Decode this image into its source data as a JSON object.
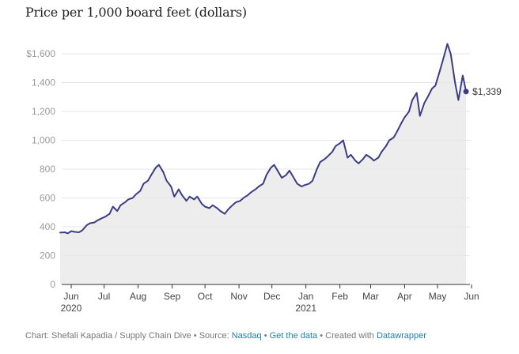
{
  "chart_data": {
    "type": "area",
    "title": "Price per 1,000 board feet (dollars)",
    "xlabel": "",
    "ylabel": "",
    "ylim": [
      0,
      1700
    ],
    "yticks": [
      0,
      200,
      400,
      600,
      800,
      1000,
      1200,
      1400,
      1600
    ],
    "ytick_labels": [
      "0",
      "200",
      "400",
      "600",
      "800",
      "1,000",
      "1,200",
      "1,400",
      "$1,600"
    ],
    "xticks": [
      {
        "date": "2020-06-01",
        "label": "Jun",
        "sublabel": "2020"
      },
      {
        "date": "2020-07-01",
        "label": "Jul",
        "sublabel": ""
      },
      {
        "date": "2020-08-01",
        "label": "Aug",
        "sublabel": ""
      },
      {
        "date": "2020-09-01",
        "label": "Sep",
        "sublabel": ""
      },
      {
        "date": "2020-10-01",
        "label": "Oct",
        "sublabel": ""
      },
      {
        "date": "2020-11-01",
        "label": "Nov",
        "sublabel": ""
      },
      {
        "date": "2020-12-01",
        "label": "Dec",
        "sublabel": ""
      },
      {
        "date": "2021-01-01",
        "label": "Jan",
        "sublabel": "2021"
      },
      {
        "date": "2021-02-01",
        "label": "Feb",
        "sublabel": ""
      },
      {
        "date": "2021-03-01",
        "label": "Mar",
        "sublabel": ""
      },
      {
        "date": "2021-04-01",
        "label": "Apr",
        "sublabel": ""
      },
      {
        "date": "2021-05-01",
        "label": "May",
        "sublabel": ""
      },
      {
        "date": "2021-06-01",
        "label": "Jun",
        "sublabel": ""
      }
    ],
    "grid": true,
    "series": [
      {
        "line_color": "#3c3c84",
        "fill_color": "#ededed",
        "x": [
          "2020-05-22",
          "2020-05-26",
          "2020-05-29",
          "2020-06-01",
          "2020-06-04",
          "2020-06-08",
          "2020-06-11",
          "2020-06-15",
          "2020-06-18",
          "2020-06-22",
          "2020-06-25",
          "2020-06-29",
          "2020-07-02",
          "2020-07-06",
          "2020-07-09",
          "2020-07-13",
          "2020-07-16",
          "2020-07-20",
          "2020-07-23",
          "2020-07-27",
          "2020-07-30",
          "2020-08-03",
          "2020-08-06",
          "2020-08-10",
          "2020-08-13",
          "2020-08-17",
          "2020-08-20",
          "2020-08-24",
          "2020-08-27",
          "2020-08-31",
          "2020-09-03",
          "2020-09-07",
          "2020-09-10",
          "2020-09-14",
          "2020-09-17",
          "2020-09-21",
          "2020-09-24",
          "2020-09-28",
          "2020-10-01",
          "2020-10-05",
          "2020-10-08",
          "2020-10-12",
          "2020-10-15",
          "2020-10-19",
          "2020-10-22",
          "2020-10-26",
          "2020-10-29",
          "2020-11-02",
          "2020-11-05",
          "2020-11-09",
          "2020-11-12",
          "2020-11-16",
          "2020-11-19",
          "2020-11-23",
          "2020-11-26",
          "2020-11-30",
          "2020-12-03",
          "2020-12-07",
          "2020-12-10",
          "2020-12-14",
          "2020-12-17",
          "2020-12-21",
          "2020-12-24",
          "2020-12-28",
          "2020-12-31",
          "2021-01-04",
          "2021-01-07",
          "2021-01-11",
          "2021-01-14",
          "2021-01-18",
          "2021-01-21",
          "2021-01-25",
          "2021-01-28",
          "2021-02-01",
          "2021-02-04",
          "2021-02-08",
          "2021-02-11",
          "2021-02-15",
          "2021-02-18",
          "2021-02-22",
          "2021-02-25",
          "2021-03-01",
          "2021-03-04",
          "2021-03-08",
          "2021-03-11",
          "2021-03-15",
          "2021-03-18",
          "2021-03-22",
          "2021-03-25",
          "2021-03-29",
          "2021-04-01",
          "2021-04-05",
          "2021-04-08",
          "2021-04-12",
          "2021-04-15",
          "2021-04-19",
          "2021-04-22",
          "2021-04-26",
          "2021-04-29",
          "2021-05-03",
          "2021-05-06",
          "2021-05-10",
          "2021-05-13",
          "2021-05-17",
          "2021-05-20",
          "2021-05-24",
          "2021-05-27"
        ],
        "values": [
          360,
          362,
          355,
          370,
          365,
          362,
          375,
          410,
          425,
          430,
          445,
          460,
          470,
          490,
          540,
          510,
          550,
          570,
          590,
          600,
          625,
          650,
          700,
          720,
          760,
          810,
          830,
          780,
          720,
          680,
          610,
          660,
          620,
          580,
          610,
          590,
          610,
          560,
          540,
          530,
          550,
          530,
          510,
          490,
          520,
          550,
          570,
          580,
          600,
          620,
          640,
          660,
          680,
          700,
          760,
          810,
          830,
          780,
          740,
          760,
          790,
          740,
          700,
          680,
          690,
          700,
          720,
          800,
          850,
          870,
          890,
          920,
          960,
          980,
          1000,
          880,
          900,
          860,
          840,
          870,
          900,
          880,
          860,
          880,
          920,
          960,
          1000,
          1020,
          1060,
          1120,
          1160,
          1200,
          1280,
          1330,
          1170,
          1260,
          1300,
          1360,
          1380,
          1480,
          1560,
          1670,
          1600,
          1400,
          1280,
          1450,
          1339
        ]
      }
    ],
    "end_label": "$1,339"
  },
  "footer": {
    "credit": "Chart: Shefali Kapadia / Supply Chain Dive",
    "source_prefix": "Source:",
    "source_link": "Nasdaq",
    "get_data": "Get the data",
    "created_prefix": "Created with",
    "created_link": "Datawrapper",
    "separator": "•"
  }
}
